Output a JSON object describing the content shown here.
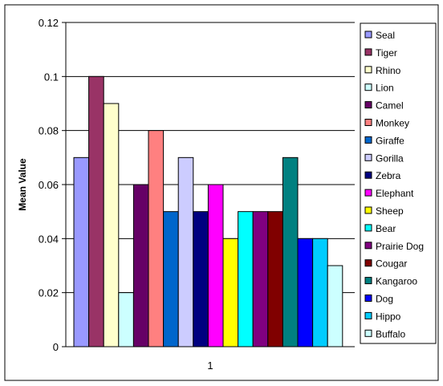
{
  "chart_data": {
    "type": "bar",
    "categories": [
      "1"
    ],
    "ylabel": "Mean Value",
    "xlabel": "",
    "ylim": [
      0,
      0.12
    ],
    "yticks": [
      0,
      0.02,
      0.04,
      0.06,
      0.08,
      0.1,
      0.12
    ],
    "ytick_labels": [
      "0",
      "0.02",
      "0.04",
      "0.06",
      "0.08",
      "0.1",
      "0.12"
    ],
    "grid": true,
    "legend_position": "right",
    "series": [
      {
        "name": "Seal",
        "values": [
          0.07
        ],
        "color": "#9999FF"
      },
      {
        "name": "Tiger",
        "values": [
          0.1
        ],
        "color": "#993366"
      },
      {
        "name": "Rhino",
        "values": [
          0.09
        ],
        "color": "#FFFFCC"
      },
      {
        "name": "Lion",
        "values": [
          0.02
        ],
        "color": "#CCFFFF"
      },
      {
        "name": "Camel",
        "values": [
          0.06
        ],
        "color": "#660066"
      },
      {
        "name": "Monkey",
        "values": [
          0.08
        ],
        "color": "#FF8080"
      },
      {
        "name": "Giraffe",
        "values": [
          0.05
        ],
        "color": "#0066CC"
      },
      {
        "name": "Gorilla",
        "values": [
          0.07
        ],
        "color": "#CCCCFF"
      },
      {
        "name": "Zebra",
        "values": [
          0.05
        ],
        "color": "#000080"
      },
      {
        "name": "Elephant",
        "values": [
          0.06
        ],
        "color": "#FF00FF"
      },
      {
        "name": "Sheep",
        "values": [
          0.04
        ],
        "color": "#FFFF00"
      },
      {
        "name": "Bear",
        "values": [
          0.05
        ],
        "color": "#00FFFF"
      },
      {
        "name": "Prairie Dog",
        "values": [
          0.05
        ],
        "color": "#800080"
      },
      {
        "name": "Cougar",
        "values": [
          0.05
        ],
        "color": "#800000"
      },
      {
        "name": "Kangaroo",
        "values": [
          0.07
        ],
        "color": "#008080"
      },
      {
        "name": "Dog",
        "values": [
          0.04
        ],
        "color": "#0000FF"
      },
      {
        "name": "Hippo",
        "values": [
          0.04
        ],
        "color": "#00CCFF"
      },
      {
        "name": "Buffalo",
        "values": [
          0.03
        ],
        "color": "#CCFFFF"
      }
    ]
  }
}
